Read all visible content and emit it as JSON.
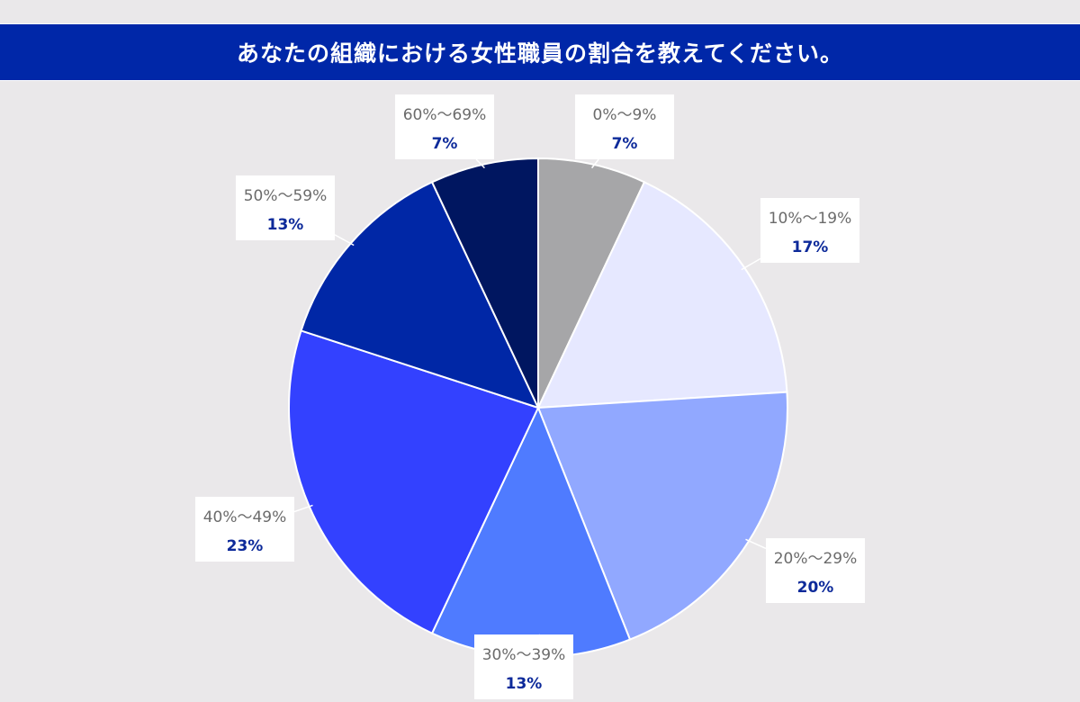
{
  "title": "あなたの組織における女性職員の割合を教えてください。",
  "chart_data": {
    "type": "pie",
    "start_angle_deg": 0,
    "direction": "clockwise",
    "slices": [
      {
        "label": "0%〜9%",
        "value": 7,
        "value_label": "7%",
        "color": "#a6a6a8"
      },
      {
        "label": "10%〜19%",
        "value": 17,
        "value_label": "17%",
        "color": "#e6e8ff"
      },
      {
        "label": "20%〜29%",
        "value": 20,
        "value_label": "20%",
        "color": "#91a8ff"
      },
      {
        "label": "30%〜39%",
        "value": 13,
        "value_label": "13%",
        "color": "#4f7bff"
      },
      {
        "label": "40%〜49%",
        "value": 23,
        "value_label": "23%",
        "color": "#3341ff"
      },
      {
        "label": "50%〜59%",
        "value": 13,
        "value_label": "13%",
        "color": "#0027a6"
      },
      {
        "label": "60%〜69%",
        "value": 7,
        "value_label": "7%",
        "color": "#001660"
      }
    ]
  }
}
